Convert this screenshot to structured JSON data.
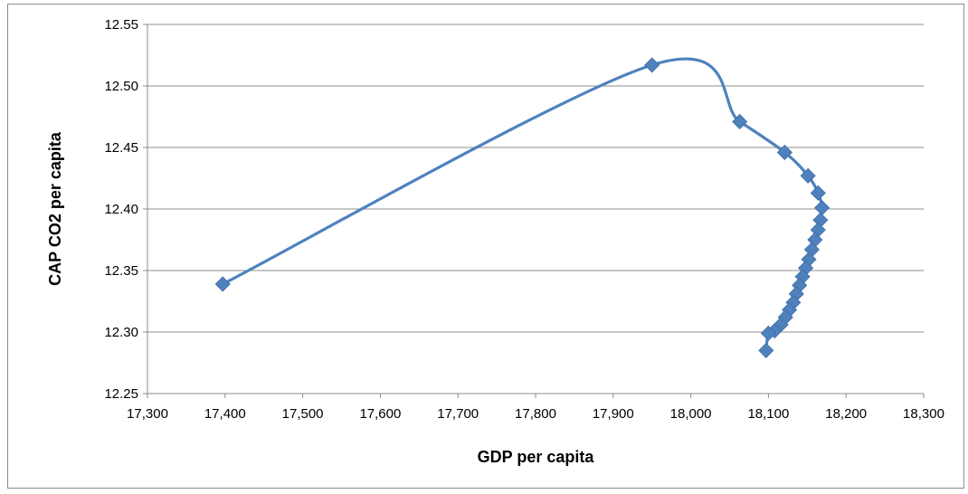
{
  "chart_data": {
    "type": "scatter",
    "title": "",
    "xlabel": "GDP per capita",
    "ylabel": "CAP CO2 per capita",
    "xlim": [
      17300,
      18300
    ],
    "ylim": [
      12.25,
      12.55
    ],
    "x_ticks": [
      17300,
      17400,
      17500,
      17600,
      17700,
      17800,
      17900,
      18000,
      18100,
      18200,
      18300
    ],
    "x_tick_labels": [
      "17,300",
      "17,400",
      "17,500",
      "17,600",
      "17,700",
      "17,800",
      "17,900",
      "18,000",
      "18,100",
      "18,200",
      "18,300"
    ],
    "y_ticks": [
      12.25,
      12.3,
      12.35,
      12.4,
      12.45,
      12.5,
      12.55
    ],
    "y_tick_labels": [
      "12.25",
      "12.30",
      "12.35",
      "12.40",
      "12.45",
      "12.50",
      "12.55"
    ],
    "grid": "horizontal",
    "legend": "none",
    "line_style": "smoothed",
    "marker": "diamond",
    "series": [
      {
        "color": "#4f81bd",
        "points": [
          {
            "x": 17397,
            "y": 12.339
          },
          {
            "x": 17950,
            "y": 12.517
          },
          {
            "x": 18063,
            "y": 12.471
          },
          {
            "x": 18121,
            "y": 12.446
          },
          {
            "x": 18151,
            "y": 12.427
          },
          {
            "x": 18164,
            "y": 12.413
          },
          {
            "x": 18169,
            "y": 12.401
          },
          {
            "x": 18167,
            "y": 12.391
          },
          {
            "x": 18164,
            "y": 12.383
          },
          {
            "x": 18160,
            "y": 12.375
          },
          {
            "x": 18156,
            "y": 12.367
          },
          {
            "x": 18152,
            "y": 12.359
          },
          {
            "x": 18148,
            "y": 12.352
          },
          {
            "x": 18144,
            "y": 12.345
          },
          {
            "x": 18140,
            "y": 12.338
          },
          {
            "x": 18136,
            "y": 12.331
          },
          {
            "x": 18132,
            "y": 12.324
          },
          {
            "x": 18127,
            "y": 12.318
          },
          {
            "x": 18122,
            "y": 12.312
          },
          {
            "x": 18116,
            "y": 12.306
          },
          {
            "x": 18108,
            "y": 12.301
          },
          {
            "x": 18100,
            "y": 12.299
          },
          {
            "x": 18097,
            "y": 12.285
          }
        ]
      }
    ]
  }
}
